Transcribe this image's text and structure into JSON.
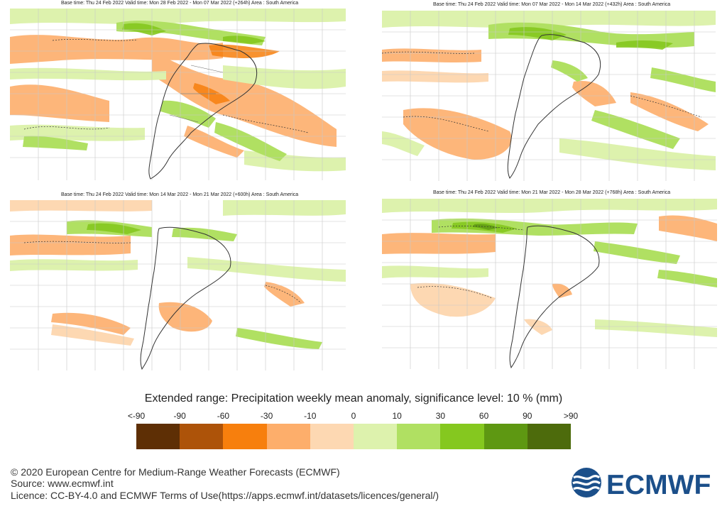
{
  "panels": [
    {
      "id": "week1",
      "title": "Base time: Thu 24 Feb 2022 Valid time: Mon 28 Feb 2022 - Mon 07 Mar 2022 (+264h) Area : South America"
    },
    {
      "id": "week2",
      "title": "Base time: Thu 24 Feb 2022 Valid time: Mon 07 Mar 2022 - Mon 14 Mar 2022 (+432h) Area : South America"
    },
    {
      "id": "week3",
      "title": "Base time: Thu 24 Feb 2022 Valid time: Mon 14 Mar 2022 - Mon 21 Mar 2022 (+600h) Area : South America"
    },
    {
      "id": "week4",
      "title": "Base time: Thu 24 Feb 2022 Valid time: Mon 21 Mar 2022 - Mon 28 Mar 2022 (+768h) Area : South America"
    }
  ],
  "legend": {
    "title": "Extended range: Precipitation weekly mean anomaly, significance level: 10 % (mm)",
    "ticks": [
      "<-90",
      "-90",
      "-60",
      "-30",
      "-10",
      "0",
      "10",
      "30",
      "60",
      "90",
      ">90"
    ],
    "colors": [
      "#5e2f05",
      "#ad5309",
      "#f77f0d",
      "#fdae6b",
      "#fdd8b2",
      "#ddf2ad",
      "#b0e062",
      "#85c81f",
      "#5e9812",
      "#4d6b0c"
    ]
  },
  "footer": {
    "copyright": "© 2020 European Centre for Medium-Range Weather Forecasts (ECMWF)",
    "source": "Source: www.ecmwf.int",
    "licence": "Licence: CC-BY-4.0 and ECMWF Terms of Use(https://apps.ecmwf.int/datasets/licences/general/)"
  },
  "logo": {
    "text": "ECMWF",
    "color": "#1b4f8a"
  }
}
